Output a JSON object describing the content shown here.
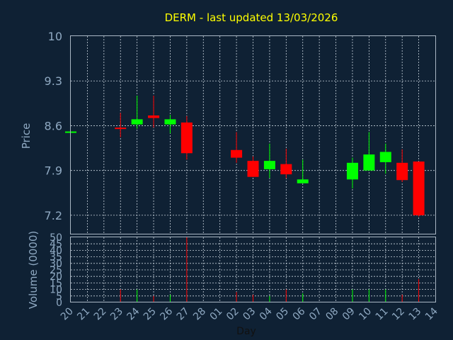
{
  "chart_data": {
    "type": "candlestick",
    "title": "DERM - last updated 13/03/2026",
    "ylabel": "Price",
    "volume_ylabel": "Volume (0000)",
    "xlabel": "Day",
    "ylim": [
      6.9,
      10
    ],
    "yticks": [
      "10",
      "9.3",
      "8.6",
      "7.9",
      "7.2"
    ],
    "ytick_values": [
      10,
      9.3,
      8.6,
      7.9,
      7.2
    ],
    "volume_ylim": [
      0,
      50
    ],
    "volume_ticks": [
      "50",
      "45",
      "40",
      "35",
      "30",
      "25",
      "20",
      "15",
      "10",
      "5",
      "0"
    ],
    "volume_tick_values": [
      50,
      45,
      40,
      35,
      30,
      25,
      20,
      15,
      10,
      5,
      0
    ],
    "x_labels": [
      "20",
      "21",
      "22",
      "23",
      "24",
      "25",
      "26",
      "27",
      "28",
      "01",
      "02",
      "03",
      "04",
      "05",
      "06",
      "07",
      "08",
      "09",
      "10",
      "11",
      "12",
      "13",
      "14"
    ],
    "candles": [
      {
        "day": "20",
        "open": 8.51,
        "high": 8.51,
        "low": 8.51,
        "close": 8.51,
        "volume": 0,
        "color": "#00ff00"
      },
      {
        "day": "23",
        "open": 8.57,
        "high": 8.8,
        "low": 8.42,
        "close": 8.57,
        "volume": 10,
        "color": "#ff0000"
      },
      {
        "day": "24",
        "open": 8.62,
        "high": 9.07,
        "low": 8.55,
        "close": 8.7,
        "volume": 10,
        "color": "#00ff00"
      },
      {
        "day": "25",
        "open": 8.76,
        "high": 9.07,
        "low": 8.57,
        "close": 8.72,
        "volume": 5,
        "color": "#ff0000"
      },
      {
        "day": "26",
        "open": 8.62,
        "high": 8.77,
        "low": 8.48,
        "close": 8.7,
        "volume": 6,
        "color": "#00ff00"
      },
      {
        "day": "27",
        "open": 8.65,
        "high": 8.75,
        "low": 8.07,
        "close": 8.17,
        "volume": 50,
        "color": "#ff0000"
      },
      {
        "day": "02",
        "open": 8.22,
        "high": 8.5,
        "low": 8.02,
        "close": 8.1,
        "volume": 8,
        "color": "#ff0000"
      },
      {
        "day": "03",
        "open": 8.05,
        "high": 8.12,
        "low": 7.8,
        "close": 7.8,
        "volume": 6,
        "color": "#ff0000"
      },
      {
        "day": "04",
        "open": 7.92,
        "high": 8.32,
        "low": 7.78,
        "close": 8.05,
        "volume": 5,
        "color": "#00ff00"
      },
      {
        "day": "05",
        "open": 8.0,
        "high": 8.24,
        "low": 7.78,
        "close": 7.84,
        "volume": 10,
        "color": "#ff0000"
      },
      {
        "day": "06",
        "open": 7.7,
        "high": 8.07,
        "low": 7.7,
        "close": 7.76,
        "volume": 7,
        "color": "#00ff00"
      },
      {
        "day": "09",
        "open": 7.76,
        "high": 8.1,
        "low": 7.62,
        "close": 8.02,
        "volume": 10,
        "color": "#00ff00"
      },
      {
        "day": "10",
        "open": 7.9,
        "high": 8.5,
        "low": 7.9,
        "close": 8.15,
        "volume": 10,
        "color": "#00ff00"
      },
      {
        "day": "11",
        "open": 8.03,
        "high": 8.32,
        "low": 7.85,
        "close": 8.19,
        "volume": 10,
        "color": "#00ff00"
      },
      {
        "day": "12",
        "open": 8.02,
        "high": 8.23,
        "low": 7.72,
        "close": 7.75,
        "volume": 6,
        "color": "#ff0000"
      },
      {
        "day": "13",
        "open": 8.04,
        "high": 8.04,
        "low": 7.18,
        "close": 7.2,
        "volume": 18,
        "color": "#ff0000"
      }
    ],
    "grid": true,
    "colors": {
      "background": "#0f2134",
      "up": "#00ff00",
      "down": "#ff0000",
      "title": "#ffff00",
      "text": "#8fa9c2",
      "grid": "#c8d2dc"
    }
  }
}
